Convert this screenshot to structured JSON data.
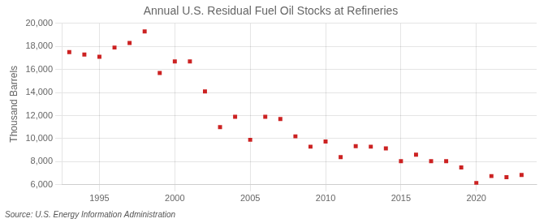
{
  "chart_data": {
    "type": "scatter",
    "title": "Annual U.S. Residual Fuel Oil Stocks at Refineries",
    "ylabel": "Thousand Barrels",
    "annotation": "Source: U.S. Energy Information Administration",
    "x": [
      1993,
      1994,
      1995,
      1996,
      1997,
      1998,
      1999,
      2000,
      2001,
      2002,
      2003,
      2004,
      2005,
      2006,
      2007,
      2008,
      2009,
      2010,
      2011,
      2012,
      2013,
      2014,
      2015,
      2016,
      2017,
      2018,
      2019,
      2020,
      2021,
      2022,
      2023
    ],
    "values": [
      17500,
      17300,
      17100,
      17900,
      18300,
      19300,
      15700,
      16700,
      16700,
      14100,
      11000,
      11900,
      9900,
      11900,
      11700,
      10200,
      9300,
      9750,
      8400,
      9350,
      9300,
      9150,
      8050,
      8600,
      8050,
      8050,
      7500,
      6150,
      6750,
      6650,
      6850
    ],
    "color": "#cc2222",
    "marker": "square",
    "xlim": [
      1992.5,
      2024
    ],
    "xticks": [
      1995,
      2000,
      2005,
      2010,
      2015,
      2020
    ],
    "ylim": [
      6000,
      20000
    ],
    "yticks": [
      {
        "value": 6000,
        "label": "6,000"
      },
      {
        "value": 8000,
        "label": "8,000"
      },
      {
        "value": 10000,
        "label": "10,000"
      },
      {
        "value": 12000,
        "label": "12,000"
      },
      {
        "value": 14000,
        "label": "14,000"
      },
      {
        "value": 16000,
        "label": "16,000"
      },
      {
        "value": 18000,
        "label": "18,000"
      },
      {
        "value": 20000,
        "label": "20,000"
      }
    ],
    "grid": true
  }
}
